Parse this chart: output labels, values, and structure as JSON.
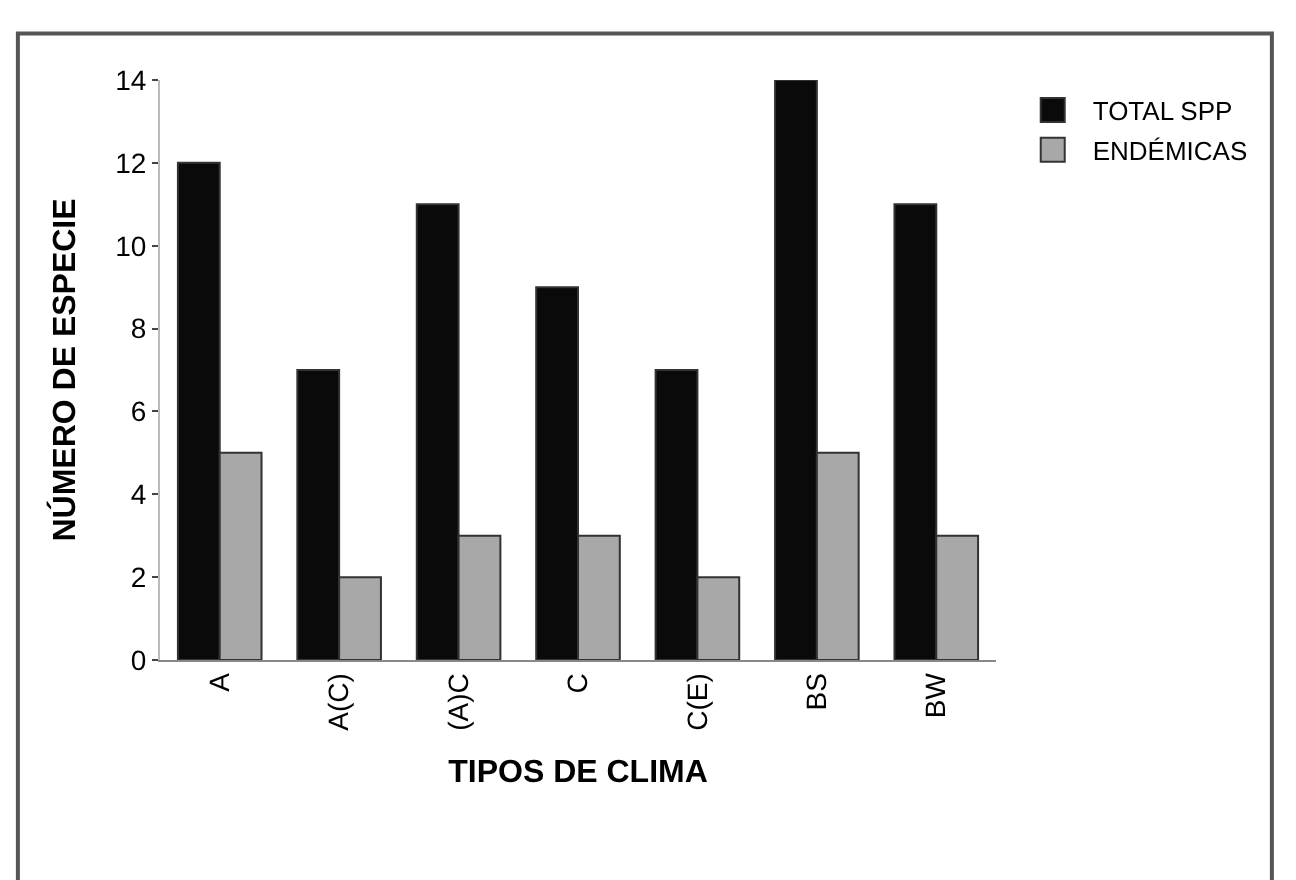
{
  "chart_data": {
    "type": "bar",
    "xlabel": "TIPOS DE CLIMA",
    "ylabel": "NÚMERO DE ESPECIE",
    "categories": [
      "A",
      "A(C)",
      "(A)C",
      "C",
      "C(E)",
      "BS",
      "BW"
    ],
    "series": [
      {
        "name": "TOTAL SPP",
        "color": "#0a0a0a",
        "values": [
          12,
          7,
          11,
          9,
          7,
          14,
          11
        ]
      },
      {
        "name": "ENDÉMICAS",
        "color": "#a8a8a8",
        "values": [
          5,
          2,
          3,
          3,
          2,
          5,
          3
        ]
      }
    ],
    "ylim": [
      0,
      14
    ],
    "yticks": [
      0,
      2,
      4,
      6,
      8,
      10,
      12,
      14
    ],
    "legend": "top right"
  }
}
